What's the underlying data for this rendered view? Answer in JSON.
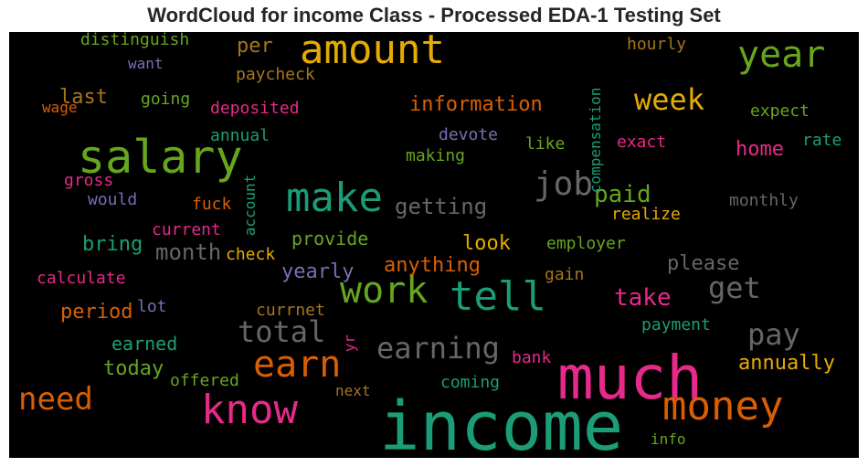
{
  "chart_data": {
    "type": "wordcloud",
    "title": "WordCloud for income Class - Processed EDA-1 Testing Set",
    "background": "#000000",
    "colormap": [
      "#1b9e77",
      "#d95f02",
      "#7570b3",
      "#e7298a",
      "#66a61e",
      "#e6ab02",
      "#a6761d",
      "#666666"
    ],
    "words": [
      {
        "text": "income",
        "color": "#1b9e77"
      },
      {
        "text": "much",
        "color": "#e7298a"
      },
      {
        "text": "salary",
        "color": "#66a61e"
      },
      {
        "text": "amount",
        "color": "#e6ab02"
      },
      {
        "text": "tell",
        "color": "#1b9e77"
      },
      {
        "text": "make",
        "color": "#1b9e77"
      },
      {
        "text": "know",
        "color": "#e7298a"
      },
      {
        "text": "money",
        "color": "#d95f02"
      },
      {
        "text": "work",
        "color": "#66a61e"
      },
      {
        "text": "earn",
        "color": "#d95f02"
      },
      {
        "text": "year",
        "color": "#66a61e"
      },
      {
        "text": "need",
        "color": "#d95f02"
      },
      {
        "text": "job",
        "color": "#666666"
      },
      {
        "text": "earning",
        "color": "#666666"
      },
      {
        "text": "total",
        "color": "#666666"
      },
      {
        "text": "get",
        "color": "#666666"
      },
      {
        "text": "pay",
        "color": "#666666"
      },
      {
        "text": "week",
        "color": "#e6ab02"
      },
      {
        "text": "take",
        "color": "#e7298a"
      },
      {
        "text": "paid",
        "color": "#66a61e"
      },
      {
        "text": "information",
        "color": "#d95f02"
      },
      {
        "text": "getting",
        "color": "#666666"
      },
      {
        "text": "month",
        "color": "#666666"
      },
      {
        "text": "home",
        "color": "#e7298a"
      },
      {
        "text": "annually",
        "color": "#e6ab02"
      },
      {
        "text": "period",
        "color": "#d95f02"
      },
      {
        "text": "anything",
        "color": "#d95f02"
      },
      {
        "text": "yearly",
        "color": "#7570b3"
      },
      {
        "text": "look",
        "color": "#e6ab02"
      },
      {
        "text": "please",
        "color": "#666666"
      },
      {
        "text": "bring",
        "color": "#1b9e77"
      },
      {
        "text": "last",
        "color": "#a6761d"
      },
      {
        "text": "today",
        "color": "#66a61e"
      },
      {
        "text": "provide",
        "color": "#66a61e"
      },
      {
        "text": "earned",
        "color": "#1b9e77"
      },
      {
        "text": "per",
        "color": "#a6761d"
      },
      {
        "text": "distinguish",
        "color": "#66a61e"
      },
      {
        "text": "compensation",
        "color": "#1b9e77"
      },
      {
        "text": "hourly",
        "color": "#a6761d"
      },
      {
        "text": "paycheck",
        "color": "#a6761d"
      },
      {
        "text": "want",
        "color": "#7570b3"
      },
      {
        "text": "going",
        "color": "#66a61e"
      },
      {
        "text": "wage",
        "color": "#d95f02"
      },
      {
        "text": "deposited",
        "color": "#e7298a"
      },
      {
        "text": "expect",
        "color": "#66a61e"
      },
      {
        "text": "annual",
        "color": "#1b9e77"
      },
      {
        "text": "devote",
        "color": "#7570b3"
      },
      {
        "text": "rate",
        "color": "#1b9e77"
      },
      {
        "text": "exact",
        "color": "#e7298a"
      },
      {
        "text": "like",
        "color": "#66a61e"
      },
      {
        "text": "making",
        "color": "#66a61e"
      },
      {
        "text": "gross",
        "color": "#e7298a"
      },
      {
        "text": "account",
        "color": "#1b9e77"
      },
      {
        "text": "would",
        "color": "#7570b3"
      },
      {
        "text": "fuck",
        "color": "#d95f02"
      },
      {
        "text": "monthly",
        "color": "#666666"
      },
      {
        "text": "realize",
        "color": "#e6ab02"
      },
      {
        "text": "current",
        "color": "#e7298a"
      },
      {
        "text": "check",
        "color": "#e6ab02"
      },
      {
        "text": "employer",
        "color": "#66a61e"
      },
      {
        "text": "calculate",
        "color": "#e7298a"
      },
      {
        "text": "gain",
        "color": "#a6761d"
      },
      {
        "text": "lot",
        "color": "#7570b3"
      },
      {
        "text": "currnet",
        "color": "#a6761d"
      },
      {
        "text": "yr",
        "color": "#e7298a"
      },
      {
        "text": "payment",
        "color": "#1b9e77"
      },
      {
        "text": "bank",
        "color": "#e7298a"
      },
      {
        "text": "offered",
        "color": "#66a61e"
      },
      {
        "text": "next",
        "color": "#a6761d"
      },
      {
        "text": "coming",
        "color": "#1b9e77"
      },
      {
        "text": "info",
        "color": "#66a61e"
      }
    ]
  }
}
